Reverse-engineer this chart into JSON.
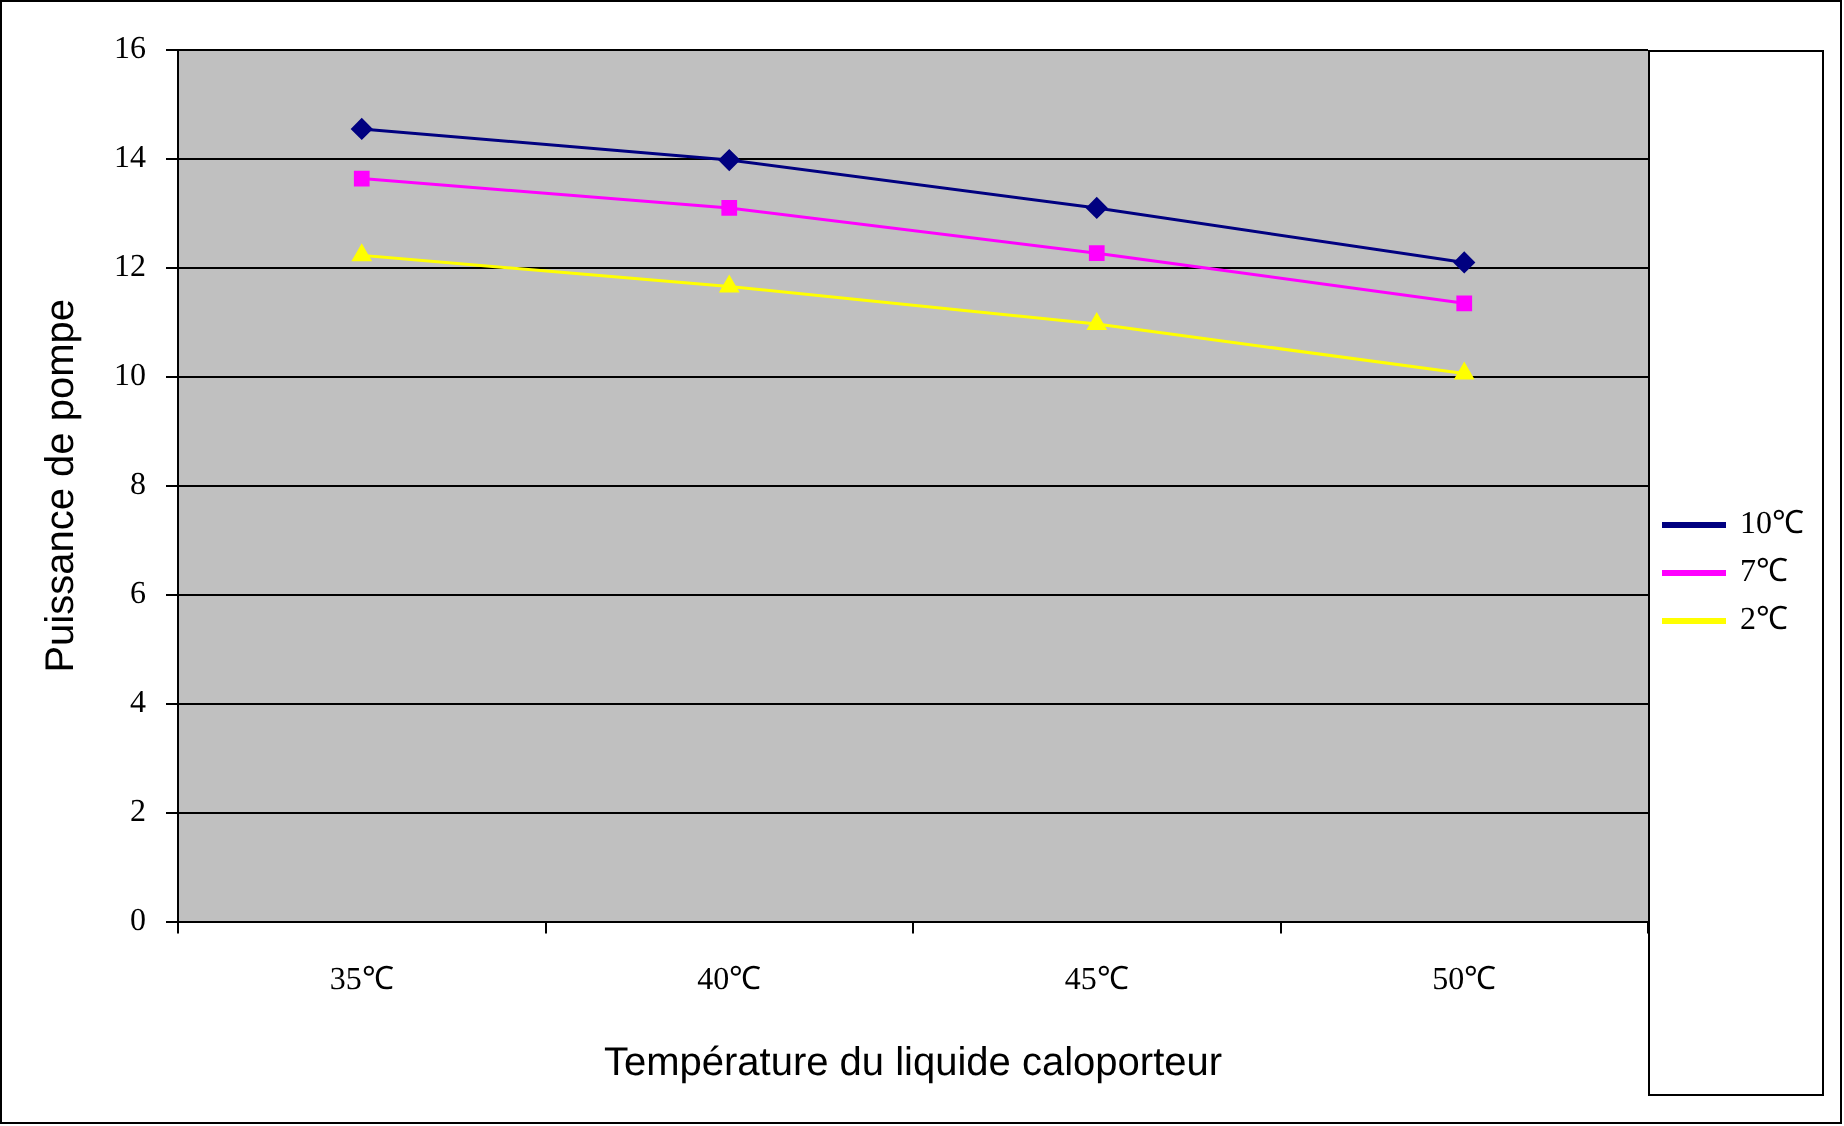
{
  "chart_data": {
    "type": "line",
    "xlabel": "Température du liquide caloporteur",
    "ylabel": "Puissance de pompe",
    "categories": [
      "35℃",
      "40℃",
      "45℃",
      "50℃"
    ],
    "series": [
      {
        "name": "10℃",
        "color": "#000080",
        "marker": "diamond",
        "values": [
          14.55,
          13.98,
          13.1,
          12.1
        ]
      },
      {
        "name": "7℃",
        "color": "#ff00ff",
        "marker": "square",
        "values": [
          13.64,
          13.1,
          12.27,
          11.35
        ]
      },
      {
        "name": "2℃",
        "color": "#ffff00",
        "marker": "triangle",
        "values": [
          12.23,
          11.66,
          10.97,
          10.06
        ]
      }
    ],
    "ylim": [
      0,
      16
    ],
    "yticks": [
      0,
      2,
      4,
      6,
      8,
      10,
      12,
      14,
      16
    ],
    "grid": "y",
    "legend": "right",
    "line_style": "solid"
  }
}
